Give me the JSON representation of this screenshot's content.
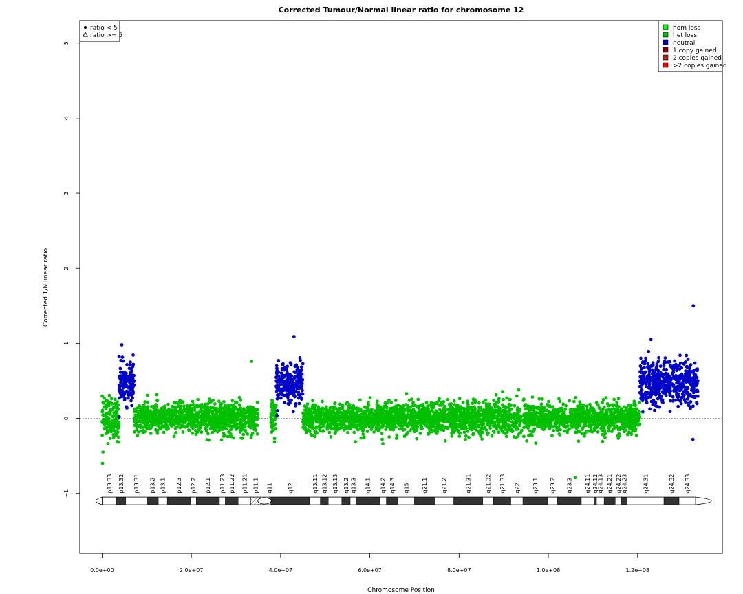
{
  "chart_data": {
    "type": "scatter",
    "title": "Corrected Tumour/Normal linear ratio for chromosome  12",
    "xlabel": "Chromosome Position",
    "ylabel": "Corrected T/N linear ratio",
    "xlim": [
      -5000000,
      139000000
    ],
    "ylim": [
      -1.8,
      5.3
    ],
    "x_ticks": [
      0,
      20000000,
      40000000,
      60000000,
      80000000,
      100000000,
      120000000
    ],
    "x_tick_labels": [
      "0.0e+00",
      "2.0e+07",
      "4.0e+07",
      "6.0e+07",
      "8.0e+07",
      "1.0e+08",
      "1.2e+08"
    ],
    "y_ticks": [
      -1,
      0,
      1,
      2,
      3,
      4,
      5
    ],
    "y_tick_labels": [
      "−1",
      "0",
      "1",
      "2",
      "3",
      "4",
      "5"
    ],
    "reference_line_y": 0,
    "segments": [
      {
        "state": "het loss",
        "x_start": 0,
        "x_end": 3800000,
        "mean": 0.0,
        "sd": 0.14
      },
      {
        "state": "neutral",
        "x_start": 3800000,
        "x_end": 7200000,
        "mean": 0.47,
        "sd": 0.13
      },
      {
        "state": "het loss",
        "x_start": 7200000,
        "x_end": 34900000,
        "mean": 0.0,
        "sd": 0.1
      },
      {
        "state": "het loss",
        "x_start": 37800000,
        "x_end": 39000000,
        "mean": 0.0,
        "sd": 0.12
      },
      {
        "state": "neutral",
        "x_start": 39000000,
        "x_end": 45000000,
        "mean": 0.47,
        "sd": 0.13
      },
      {
        "state": "het loss",
        "x_start": 45000000,
        "x_end": 120500000,
        "mean": 0.0,
        "sd": 0.1
      },
      {
        "state": "neutral",
        "x_start": 120500000,
        "x_end": 133500000,
        "mean": 0.47,
        "sd": 0.15
      }
    ],
    "notable_points": [
      {
        "x": 100000,
        "y": -0.6,
        "state": "het loss"
      },
      {
        "x": 200000,
        "y": -0.45,
        "state": "het loss"
      },
      {
        "x": 33500000,
        "y": 0.76,
        "state": "het loss"
      },
      {
        "x": 106000000,
        "y": -0.79,
        "state": "het loss"
      },
      {
        "x": 132500000,
        "y": 1.5,
        "state": "neutral"
      },
      {
        "x": 132400000,
        "y": -0.28,
        "state": "neutral"
      },
      {
        "x": 123000000,
        "y": 1.05,
        "state": "neutral"
      },
      {
        "x": 43000000,
        "y": 1.09,
        "state": "neutral"
      },
      {
        "x": 4400000,
        "y": 0.98,
        "state": "neutral"
      }
    ],
    "ideogram": {
      "y": -1.1,
      "centromere": [
        34900000,
        37900000
      ],
      "bands": [
        {
          "name": "p13.33",
          "start": 0,
          "end": 3200000,
          "stain": "gneg"
        },
        {
          "name": "p13.32",
          "start": 3200000,
          "end": 5300000,
          "stain": "gpos"
        },
        {
          "name": "p13.31",
          "start": 5300000,
          "end": 10000000,
          "stain": "gneg"
        },
        {
          "name": "p13.2",
          "start": 10000000,
          "end": 12600000,
          "stain": "gpos"
        },
        {
          "name": "p13.1",
          "start": 12600000,
          "end": 14600000,
          "stain": "gneg"
        },
        {
          "name": "p12.3",
          "start": 14600000,
          "end": 19800000,
          "stain": "gpos"
        },
        {
          "name": "p12.2",
          "start": 19800000,
          "end": 21100000,
          "stain": "gneg"
        },
        {
          "name": "p12.1",
          "start": 21100000,
          "end": 26300000,
          "stain": "gpos"
        },
        {
          "name": "p11.23",
          "start": 26300000,
          "end": 27600000,
          "stain": "gneg"
        },
        {
          "name": "p11.22",
          "start": 27600000,
          "end": 30500000,
          "stain": "gpos"
        },
        {
          "name": "p11.21",
          "start": 30500000,
          "end": 33300000,
          "stain": "gneg"
        },
        {
          "name": "p11.1",
          "start": 33300000,
          "end": 35500000,
          "stain": "stalk"
        },
        {
          "name": "q11",
          "start": 37200000,
          "end": 37800000,
          "stain": "gneg"
        },
        {
          "name": "q12",
          "start": 37800000,
          "end": 46500000,
          "stain": "gpos"
        },
        {
          "name": "q13.11",
          "start": 46500000,
          "end": 48900000,
          "stain": "gneg"
        },
        {
          "name": "q13.12",
          "start": 48900000,
          "end": 50700000,
          "stain": "gpos"
        },
        {
          "name": "q13.13",
          "start": 50700000,
          "end": 53700000,
          "stain": "gneg"
        },
        {
          "name": "q13.2",
          "start": 53700000,
          "end": 55600000,
          "stain": "gpos"
        },
        {
          "name": "q13.3",
          "start": 55600000,
          "end": 56900000,
          "stain": "gneg"
        },
        {
          "name": "q14.1",
          "start": 56900000,
          "end": 62200000,
          "stain": "gpos"
        },
        {
          "name": "q14.2",
          "start": 62200000,
          "end": 63700000,
          "stain": "gneg"
        },
        {
          "name": "q14.3",
          "start": 63700000,
          "end": 66300000,
          "stain": "gpos"
        },
        {
          "name": "q15",
          "start": 66300000,
          "end": 70000000,
          "stain": "gneg"
        },
        {
          "name": "q21.1",
          "start": 70000000,
          "end": 74500000,
          "stain": "gpos"
        },
        {
          "name": "q21.2",
          "start": 74500000,
          "end": 78800000,
          "stain": "gneg"
        },
        {
          "name": "q21.31",
          "start": 78800000,
          "end": 85300000,
          "stain": "gpos"
        },
        {
          "name": "q21.32",
          "start": 85300000,
          "end": 87700000,
          "stain": "gneg"
        },
        {
          "name": "q21.33",
          "start": 87700000,
          "end": 91600000,
          "stain": "gpos"
        },
        {
          "name": "q22",
          "start": 91600000,
          "end": 94300000,
          "stain": "gneg"
        },
        {
          "name": "q23.1",
          "start": 94300000,
          "end": 99800000,
          "stain": "gpos"
        },
        {
          "name": "q23.2",
          "start": 99800000,
          "end": 102000000,
          "stain": "gneg"
        },
        {
          "name": "q23.3",
          "start": 102000000,
          "end": 107400000,
          "stain": "gpos"
        },
        {
          "name": "q24.11",
          "start": 107400000,
          "end": 110200000,
          "stain": "gneg"
        },
        {
          "name": "q24.12",
          "start": 110200000,
          "end": 110800000,
          "stain": "gpos"
        },
        {
          "name": "q24.13",
          "start": 110800000,
          "end": 112500000,
          "stain": "gneg"
        },
        {
          "name": "q24.21",
          "start": 112500000,
          "end": 115000000,
          "stain": "gpos"
        },
        {
          "name": "q24.22",
          "start": 115000000,
          "end": 116400000,
          "stain": "gneg"
        },
        {
          "name": "q24.23",
          "start": 116400000,
          "end": 117700000,
          "stain": "gpos"
        },
        {
          "name": "q24.31",
          "start": 117700000,
          "end": 125900000,
          "stain": "gneg"
        },
        {
          "name": "q24.32",
          "start": 125900000,
          "end": 129300000,
          "stain": "gpos"
        },
        {
          "name": "q24.33",
          "start": 129300000,
          "end": 133000000,
          "stain": "gneg"
        }
      ]
    },
    "legend_shape": {
      "placement": "top-left",
      "entries": [
        {
          "label": "ratio < 5",
          "shape": "filled-circle"
        },
        {
          "label": "ratio >= 5",
          "shape": "open-triangle"
        }
      ]
    },
    "legend_state": {
      "placement": "top-right",
      "entries": [
        {
          "label": "hom loss",
          "color": "#00FF00"
        },
        {
          "label": "het loss",
          "color": "#00C000"
        },
        {
          "label": "neutral",
          "color": "#0000CD"
        },
        {
          "label": "1 copy gained",
          "color": "#8B0000"
        },
        {
          "label": "2 copies gained",
          "color": "#B22222"
        },
        {
          "label": ">2 copies gained",
          "color": "#FF0000"
        }
      ]
    },
    "colors": {
      "het loss": "#00C000",
      "neutral": "#0000CD",
      "gpos": "#333333",
      "gneg": "#ffffff"
    }
  }
}
